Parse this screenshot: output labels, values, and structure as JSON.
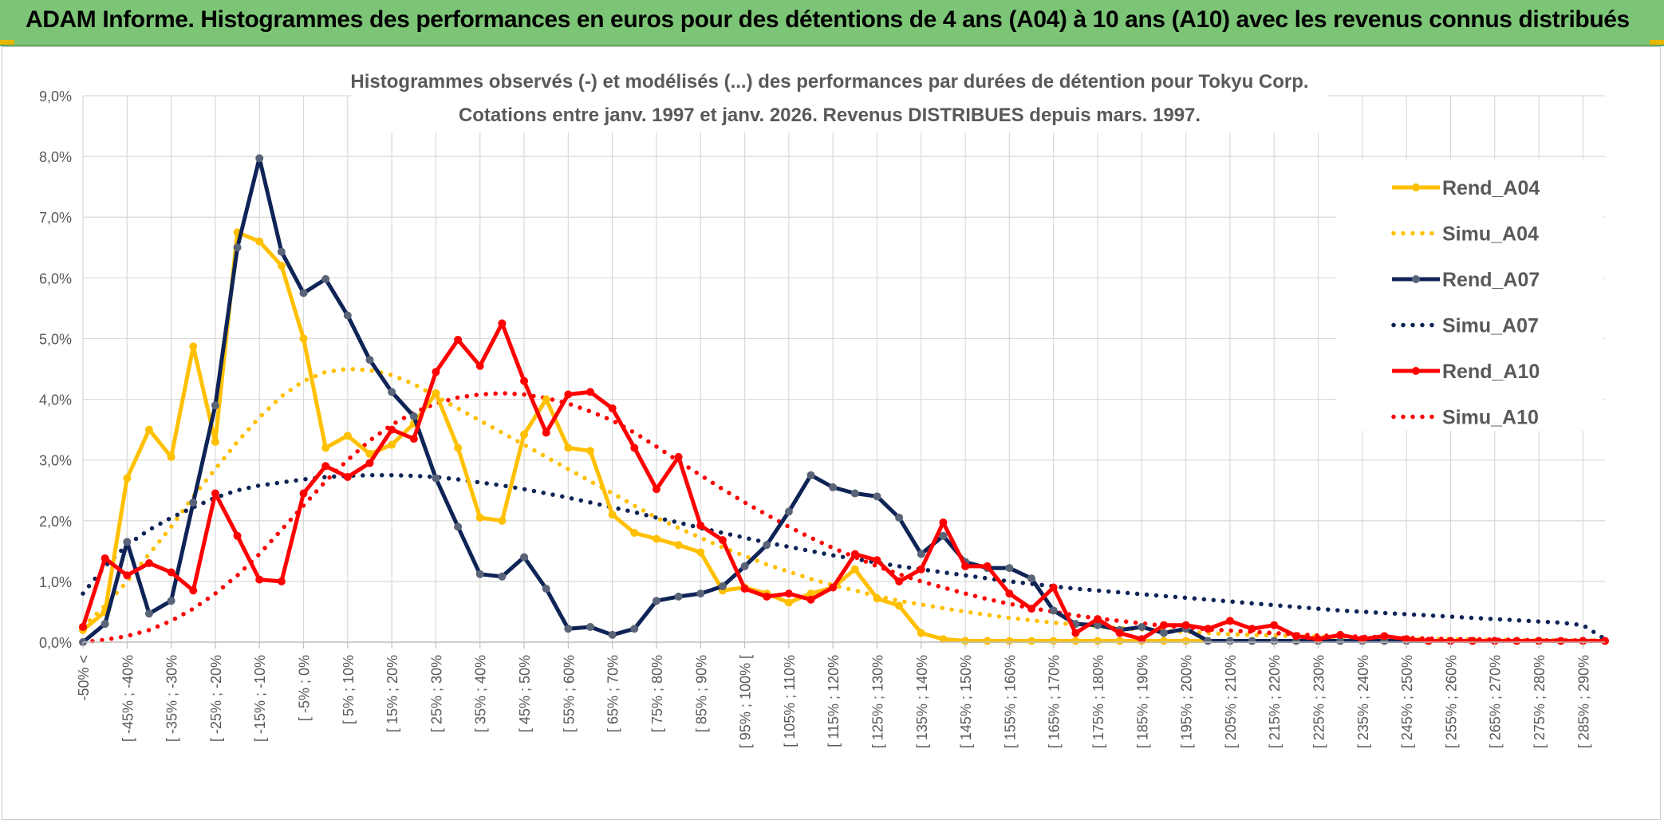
{
  "banner": {
    "title": "ADAM Informe. Histogrammes des performances en euros pour des détentions de 4 ans (A04) à 10 ans (A10) avec les revenus connus distribués",
    "background": "#7cc576"
  },
  "chart_data": {
    "type": "line",
    "title": "Histogrammes observés (-) et modélisés (...) des performances par durées de détention pour Tokyu Corp.",
    "subtitle": "Cotations entre janv. 1997 et janv. 2026. Revenus DISTRIBUES depuis mars. 1997.",
    "xlabel": "",
    "ylabel": "",
    "ylim": [
      0,
      9
    ],
    "y_ticks": [
      "0,0%",
      "1,0%",
      "2,0%",
      "3,0%",
      "4,0%",
      "5,0%",
      "6,0%",
      "7,0%",
      "8,0%",
      "9,0%"
    ],
    "grid": true,
    "legend_position": "right",
    "x_tick_labels": [
      "-50% <",
      "[ -45% ; -40%",
      "[ -35% ; -30%",
      "[ -25% ; -20%",
      "[ -15% ; -10%",
      "[ -5% ; 0%",
      "[ 5% ; 10%",
      "[ 15% ; 20%",
      "[ 25% ; 30%",
      "[ 35% ; 40%",
      "[ 45% ; 50%",
      "[ 55% ; 60%",
      "[ 65% ; 70%",
      "[ 75% ; 80%",
      "[ 85% ; 90%",
      "[ 95% ; 100% [",
      "[ 105% ; 110%",
      "[ 115% ; 120%",
      "[ 125% ; 130%",
      "[ 135% ; 140%",
      "[ 145% ; 150%",
      "[ 155% ; 160%",
      "[ 165% ; 170%",
      "[ 175% ; 180%",
      "[ 185% ; 190%",
      "[ 195% ; 200%",
      "[ 205% ; 210%",
      "[ 215% ; 220%",
      "[ 225% ; 230%",
      "[ 235% ; 240%",
      "[ 245% ; 250%",
      "[ 255% ; 260%",
      "[ 265% ; 270%",
      "[ 275% ; 280%",
      "[ 285% ; 290%"
    ],
    "series": [
      {
        "name": "Rend_A04",
        "style": "solid",
        "color": "#ffc000",
        "markers": true,
        "values": [
          0.2,
          0.5,
          2.7,
          3.5,
          3.05,
          4.87,
          3.3,
          6.75,
          6.6,
          6.2,
          5.0,
          3.2,
          3.4,
          3.1,
          3.25,
          3.6,
          4.1,
          3.2,
          2.05,
          2.0,
          3.42,
          4.0,
          3.2,
          3.15,
          2.1,
          1.8,
          1.7,
          1.6,
          1.48,
          0.85,
          0.9,
          0.8,
          0.65,
          0.8,
          0.9,
          1.2,
          0.72,
          0.6,
          0.15,
          0.05,
          0.02,
          0.02,
          0.02,
          0.02,
          0.02,
          0.02,
          0.02,
          0.02,
          0.02,
          0.02,
          0.02,
          0.02,
          0.02,
          0.02,
          0.02,
          0.02,
          0.02,
          0.02,
          0.02,
          0.02,
          0.02,
          0.02,
          0.02,
          0.02,
          0.02,
          0.02,
          0.02,
          0.02,
          0.02,
          0.02
        ]
      },
      {
        "name": "Simu_A04",
        "style": "dotted",
        "color": "#ffc000",
        "markers": false,
        "values": [
          0.25,
          0.6,
          1.0,
          1.45,
          1.9,
          2.4,
          2.85,
          3.3,
          3.7,
          4.05,
          4.3,
          4.45,
          4.5,
          4.48,
          4.4,
          4.25,
          4.05,
          3.85,
          3.65,
          3.45,
          3.25,
          3.05,
          2.85,
          2.65,
          2.45,
          2.25,
          2.05,
          1.88,
          1.72,
          1.56,
          1.42,
          1.28,
          1.16,
          1.04,
          0.94,
          0.85,
          0.76,
          0.68,
          0.62,
          0.56,
          0.5,
          0.45,
          0.4,
          0.36,
          0.32,
          0.29,
          0.26,
          0.23,
          0.21,
          0.19,
          0.17,
          0.15,
          0.13,
          0.12,
          0.11,
          0.1,
          0.09,
          0.08,
          0.07,
          0.06,
          0.06,
          0.05,
          0.05,
          0.04,
          0.04,
          0.04,
          0.03,
          0.03,
          0.03,
          0.03
        ]
      },
      {
        "name": "Rend_A07",
        "style": "solid",
        "color": "#0f2456",
        "markers": true,
        "values": [
          0.0,
          0.3,
          1.65,
          0.47,
          0.68,
          2.3,
          3.9,
          6.5,
          7.97,
          6.43,
          5.75,
          5.98,
          5.38,
          4.65,
          4.12,
          3.72,
          2.7,
          1.9,
          1.12,
          1.08,
          1.4,
          0.88,
          0.22,
          0.25,
          0.12,
          0.22,
          0.68,
          0.75,
          0.8,
          0.92,
          1.25,
          1.6,
          2.15,
          2.75,
          2.55,
          2.45,
          2.4,
          2.05,
          1.45,
          1.75,
          1.32,
          1.22,
          1.22,
          1.05,
          0.52,
          0.3,
          0.28,
          0.2,
          0.25,
          0.15,
          0.22,
          0.02,
          0.02,
          0.02,
          0.02,
          0.02,
          0.02,
          0.02,
          0.02,
          0.02,
          0.02,
          0.02,
          0.02,
          0.02,
          0.02,
          0.02,
          0.02,
          0.02,
          0.02,
          0.02
        ]
      },
      {
        "name": "Simu_A07",
        "style": "dotted",
        "color": "#0f2456",
        "markers": false,
        "values": [
          0.8,
          1.25,
          1.6,
          1.85,
          2.05,
          2.22,
          2.38,
          2.5,
          2.58,
          2.63,
          2.68,
          2.72,
          2.74,
          2.75,
          2.75,
          2.74,
          2.72,
          2.68,
          2.63,
          2.58,
          2.52,
          2.45,
          2.38,
          2.3,
          2.22,
          2.14,
          2.05,
          1.97,
          1.88,
          1.8,
          1.72,
          1.64,
          1.57,
          1.5,
          1.43,
          1.37,
          1.31,
          1.25,
          1.2,
          1.15,
          1.1,
          1.05,
          1.0,
          0.96,
          0.92,
          0.88,
          0.85,
          0.82,
          0.79,
          0.76,
          0.73,
          0.7,
          0.67,
          0.64,
          0.61,
          0.58,
          0.55,
          0.52,
          0.5,
          0.48,
          0.46,
          0.44,
          0.42,
          0.4,
          0.38,
          0.36,
          0.34,
          0.32,
          0.28,
          0.05
        ]
      },
      {
        "name": "Rend_A10",
        "style": "solid",
        "color": "#ff0000",
        "markers": true,
        "values": [
          0.25,
          1.38,
          1.1,
          1.3,
          1.15,
          0.85,
          2.45,
          1.75,
          1.03,
          1.0,
          2.45,
          2.9,
          2.72,
          2.95,
          3.5,
          3.35,
          4.45,
          4.98,
          4.55,
          5.25,
          4.3,
          3.45,
          4.08,
          4.12,
          3.85,
          3.2,
          2.52,
          3.05,
          1.92,
          1.68,
          0.88,
          0.75,
          0.8,
          0.7,
          0.9,
          1.45,
          1.35,
          1.0,
          1.2,
          1.97,
          1.25,
          1.25,
          0.8,
          0.55,
          0.9,
          0.15,
          0.38,
          0.15,
          0.05,
          0.28,
          0.28,
          0.22,
          0.35,
          0.22,
          0.28,
          0.1,
          0.05,
          0.12,
          0.05,
          0.1,
          0.05,
          0.02,
          0.02,
          0.02,
          0.02,
          0.02,
          0.02,
          0.02,
          0.02,
          0.02
        ]
      },
      {
        "name": "Simu_A10",
        "style": "dotted",
        "color": "#ff0000",
        "markers": false,
        "values": [
          0.0,
          0.04,
          0.1,
          0.2,
          0.35,
          0.55,
          0.8,
          1.1,
          1.45,
          1.85,
          2.25,
          2.65,
          3.0,
          3.32,
          3.58,
          3.78,
          3.93,
          4.03,
          4.08,
          4.1,
          4.08,
          4.02,
          3.93,
          3.8,
          3.65,
          3.45,
          3.22,
          2.98,
          2.75,
          2.52,
          2.3,
          2.1,
          1.9,
          1.72,
          1.55,
          1.4,
          1.25,
          1.12,
          1.0,
          0.9,
          0.8,
          0.71,
          0.63,
          0.56,
          0.5,
          0.44,
          0.39,
          0.35,
          0.31,
          0.27,
          0.24,
          0.21,
          0.19,
          0.17,
          0.15,
          0.13,
          0.11,
          0.1,
          0.09,
          0.08,
          0.07,
          0.06,
          0.05,
          0.05,
          0.04,
          0.04,
          0.03,
          0.03,
          0.03,
          0.02
        ]
      }
    ]
  }
}
